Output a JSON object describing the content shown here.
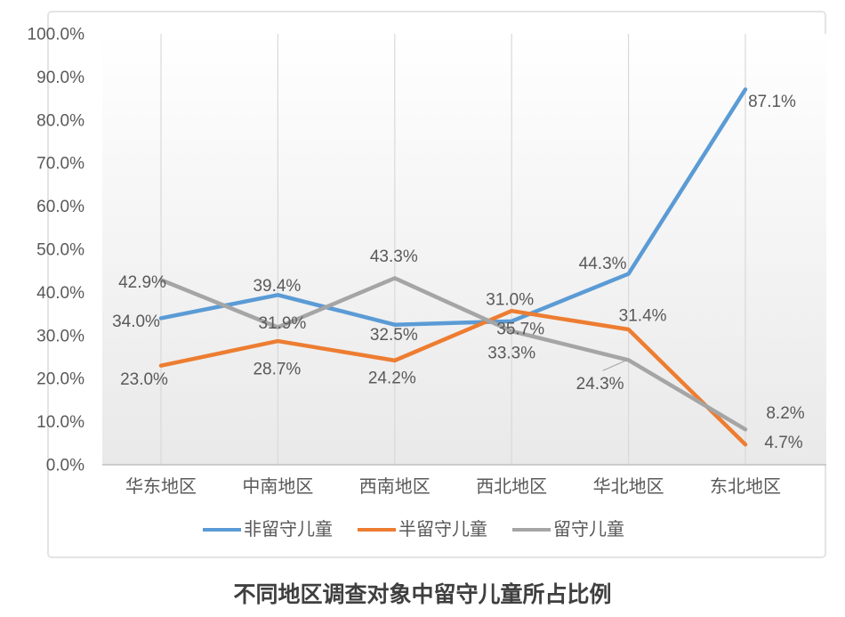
{
  "chart_data": {
    "type": "line",
    "title": "不同地区调查对象中留守儿童所占比例",
    "categories": [
      "华东地区",
      "中南地区",
      "西南地区",
      "西北地区",
      "华北地区",
      "东北地区"
    ],
    "series": [
      {
        "name": "非留守儿童",
        "color": "#5B9BD5",
        "values": [
          34.0,
          39.4,
          32.5,
          33.3,
          44.3,
          87.1
        ],
        "labels": [
          "34.0%",
          "39.4%",
          "32.5%",
          "33.3%",
          "44.3%",
          "87.1%"
        ],
        "label_offsets": [
          [
            -28,
            3
          ],
          [
            -1,
            -11
          ],
          [
            -1,
            11
          ],
          [
            0,
            35
          ],
          [
            -29,
            -12
          ],
          [
            30,
            13
          ]
        ]
      },
      {
        "name": "半留守儿童",
        "color": "#ED7D31",
        "values": [
          23.0,
          28.7,
          24.2,
          35.7,
          31.4,
          4.7
        ],
        "labels": [
          "23.0%",
          "28.7%",
          "24.2%",
          "35.7%",
          "31.4%",
          "4.7%"
        ],
        "label_offsets": [
          [
            -19,
            15
          ],
          [
            -1,
            31
          ],
          [
            -3,
            19
          ],
          [
            10,
            20
          ],
          [
            16,
            -16
          ],
          [
            43,
            -3
          ]
        ]
      },
      {
        "name": "留守儿童",
        "color": "#A5A5A5",
        "values": [
          42.9,
          31.9,
          43.3,
          31.0,
          24.3,
          8.2
        ],
        "labels": [
          "42.9%",
          "31.9%",
          "43.3%",
          "31.0%",
          "24.3%",
          "8.2%"
        ],
        "label_offsets": [
          [
            -21,
            2
          ],
          [
            5,
            -5
          ],
          [
            -1,
            -25
          ],
          [
            -2,
            -36
          ],
          [
            -32,
            26
          ],
          [
            45,
            -19
          ]
        ]
      }
    ],
    "y_ticks": [
      "0.0%",
      "10.0%",
      "20.0%",
      "30.0%",
      "40.0%",
      "50.0%",
      "60.0%",
      "70.0%",
      "80.0%",
      "90.0%",
      "100.0%"
    ],
    "ylim": [
      0,
      100
    ],
    "grid": "vertical-only",
    "legend_position": "bottom",
    "leader_line": {
      "series": 2,
      "point": 4,
      "from_offset": [
        -29,
        12
      ],
      "to_offset": [
        -4,
        1
      ]
    },
    "text_color": "#595959"
  }
}
